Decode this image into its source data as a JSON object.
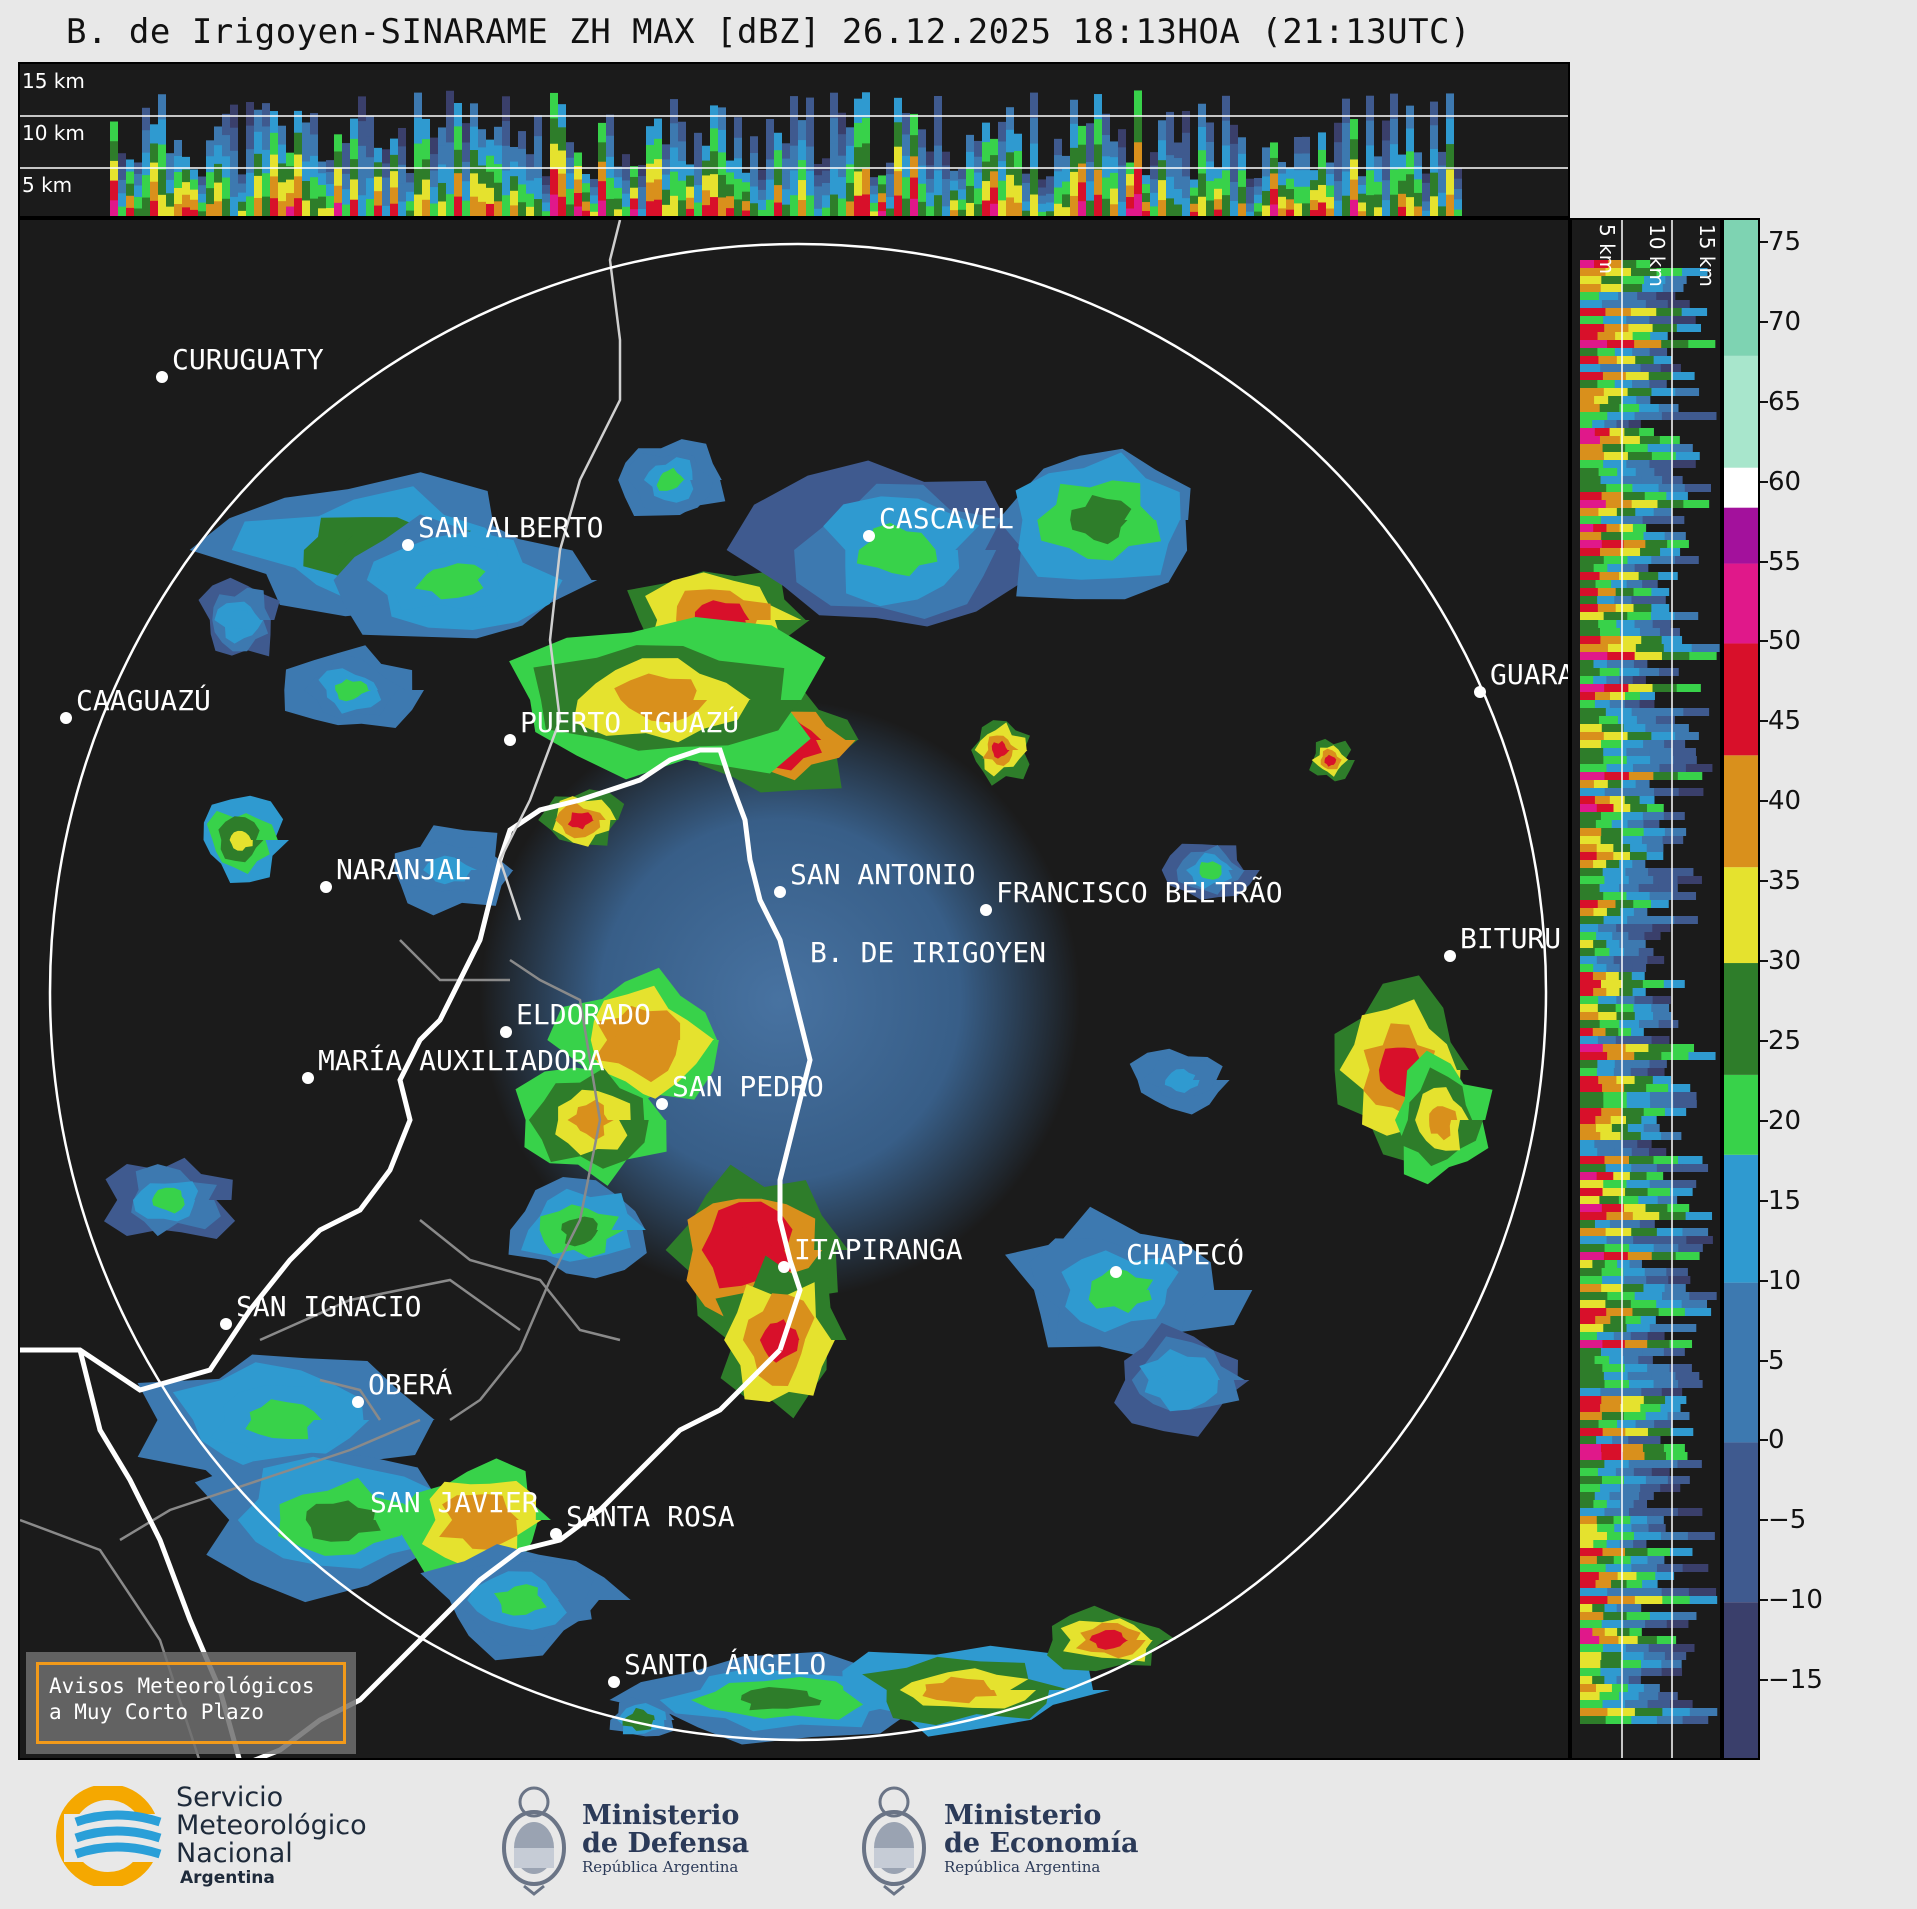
{
  "title": "B. de Irigoyen-SINARAME ZH MAX [dBZ] 26.12.2025 18:13HOA (21:13UTC)",
  "top_section": {
    "height_labels": [
      "15 km",
      "10 km",
      "5 km"
    ]
  },
  "side_section": {
    "height_labels": [
      "5 km",
      "10 km",
      "15 km"
    ]
  },
  "colorbar": {
    "unit": "dBZ",
    "ticks": [
      "75",
      "70",
      "65",
      "60",
      "55",
      "50",
      "45",
      "40",
      "35",
      "30",
      "25",
      "20",
      "15",
      "10",
      "5",
      "0",
      "−5",
      "−10",
      "−15"
    ],
    "tick_values": [
      75,
      70,
      65,
      60,
      55,
      50,
      45,
      40,
      35,
      30,
      25,
      20,
      15,
      10,
      5,
      0,
      -5,
      -10,
      -15
    ],
    "range": [
      -20,
      76.5
    ],
    "bands": [
      {
        "from": -20,
        "to": -10,
        "color": "#3a3f6b"
      },
      {
        "from": -10,
        "to": 0,
        "color": "#3f5a8f"
      },
      {
        "from": 0,
        "to": 10,
        "color": "#3d79b0"
      },
      {
        "from": 10,
        "to": 18,
        "color": "#2f9ad0"
      },
      {
        "from": 18,
        "to": 23,
        "color": "#38d24a"
      },
      {
        "from": 23,
        "to": 30,
        "color": "#2e7d2a"
      },
      {
        "from": 30,
        "to": 36,
        "color": "#e5e22e"
      },
      {
        "from": 36,
        "to": 43,
        "color": "#d9901c"
      },
      {
        "from": 43,
        "to": 50,
        "color": "#d8102a"
      },
      {
        "from": 50,
        "to": 55,
        "color": "#e0188a"
      },
      {
        "from": 55,
        "to": 58.5,
        "color": "#a3119c"
      },
      {
        "from": 58.5,
        "to": 61,
        "color": "#ffffff"
      },
      {
        "from": 61,
        "to": 68,
        "color": "#a8e6cc"
      },
      {
        "from": 68,
        "to": 76.5,
        "color": "#7ed3b2"
      }
    ]
  },
  "cities": [
    {
      "name": "CURUGUATY"
    },
    {
      "name": "SAN ALBERTO"
    },
    {
      "name": "CASCAVEL"
    },
    {
      "name": "CAAGUAZÚ"
    },
    {
      "name": "GUARA"
    },
    {
      "name": "PUERTO IGUAZÚ"
    },
    {
      "name": "NARANJAL"
    },
    {
      "name": "SAN ANTONIO"
    },
    {
      "name": "FRANCISCO BELTRÃO"
    },
    {
      "name": "BITURU"
    },
    {
      "name": "B. DE IRIGOYEN"
    },
    {
      "name": "ELDORADO"
    },
    {
      "name": "MARÍA AUXILIADORA"
    },
    {
      "name": "SAN PEDRO"
    },
    {
      "name": "ITAPIRANGA"
    },
    {
      "name": "CHAPECÓ"
    },
    {
      "name": "SAN IGNACIO"
    },
    {
      "name": "OBERÁ"
    },
    {
      "name": "SAN JAVIER"
    },
    {
      "name": "SANTA ROSA"
    },
    {
      "name": "SANTO ÁNGELO"
    }
  ],
  "warning": {
    "line1": "Avisos Meteorológicos",
    "line2": "a Muy Corto Plazo"
  },
  "footer": {
    "smn": {
      "line1": "Servicio",
      "line2": "Meteorológico",
      "line3": "Nacional",
      "line4": "Argentina"
    },
    "defensa": {
      "line1": "Ministerio",
      "line2": "de Defensa",
      "line3": "República Argentina"
    },
    "economia": {
      "line1": "Ministerio",
      "line2": "de Economía",
      "line3": "República Argentina"
    }
  },
  "colors": {
    "panel_bg": "#1b1b1b",
    "range_ring": "#ffffff",
    "border_intl": "#ffffff",
    "border_prov": "#8a8a8a",
    "warning_border": "#f29a1a"
  }
}
